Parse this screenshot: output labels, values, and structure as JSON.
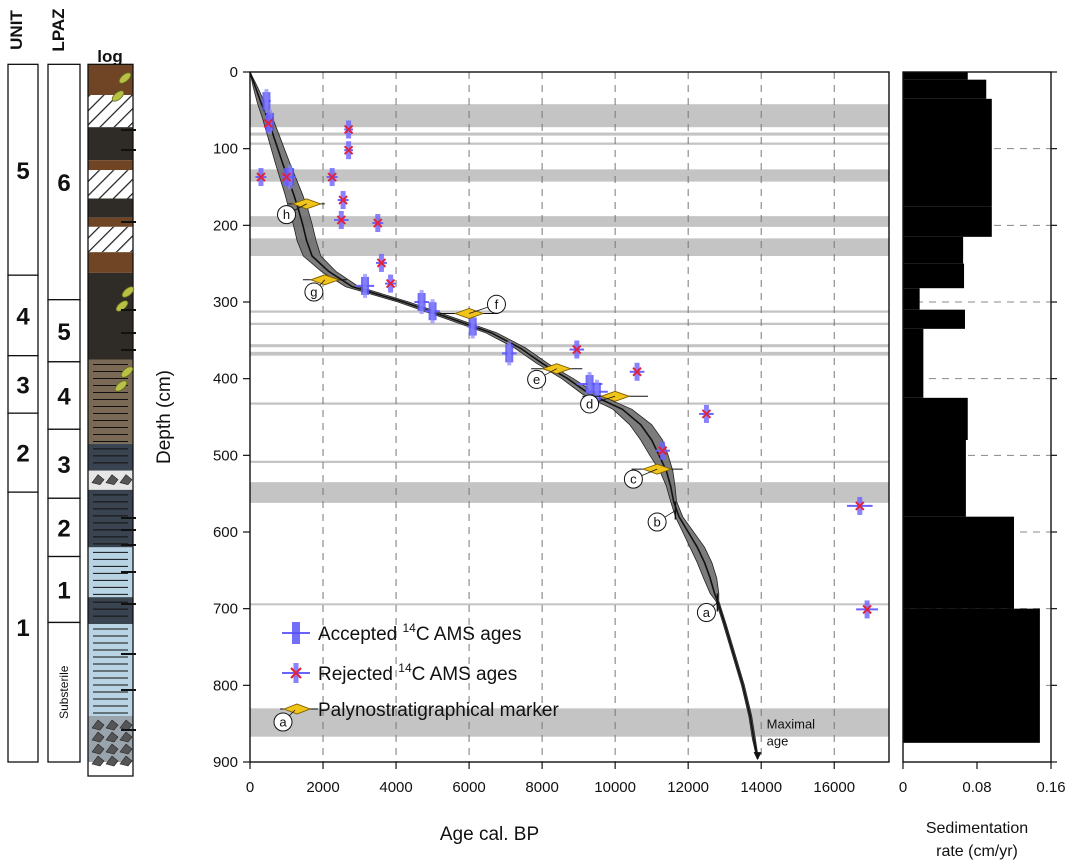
{
  "columns": {
    "unit_header": "UNIT",
    "lpaz_header": "LPAZ",
    "log_header": "log",
    "units": [
      {
        "label": "5",
        "top": -10,
        "bottom": 265
      },
      {
        "label": "4",
        "top": 265,
        "bottom": 370
      },
      {
        "label": "3",
        "top": 370,
        "bottom": 445
      },
      {
        "label": "2",
        "top": 445,
        "bottom": 548
      },
      {
        "label": "1",
        "top": 548,
        "bottom": 900
      }
    ],
    "lpaz": [
      {
        "label": "6",
        "top": -10,
        "bottom": 297
      },
      {
        "label": "5",
        "top": 297,
        "bottom": 378
      },
      {
        "label": "4",
        "top": 378,
        "bottom": 466
      },
      {
        "label": "3",
        "top": 466,
        "bottom": 556
      },
      {
        "label": "2",
        "top": 556,
        "bottom": 632
      },
      {
        "label": "1",
        "top": 632,
        "bottom": 718
      },
      {
        "label": "Substerile",
        "top": 718,
        "bottom": 900
      }
    ],
    "log_segments": [
      {
        "top": -10,
        "bottom": 30,
        "color": "#6f4526",
        "pattern": "plain"
      },
      {
        "top": 30,
        "bottom": 72,
        "color": "#ffffff",
        "pattern": "hatch"
      },
      {
        "top": 72,
        "bottom": 115,
        "color": "#2f2c27",
        "pattern": "plain"
      },
      {
        "top": 115,
        "bottom": 128,
        "color": "#6f4526",
        "pattern": "plain"
      },
      {
        "top": 128,
        "bottom": 165,
        "color": "#ffffff",
        "pattern": "hatch"
      },
      {
        "top": 165,
        "bottom": 190,
        "color": "#2f2c27",
        "pattern": "plain"
      },
      {
        "top": 190,
        "bottom": 202,
        "color": "#6f4526",
        "pattern": "plain"
      },
      {
        "top": 202,
        "bottom": 235,
        "color": "#ffffff",
        "pattern": "hatch"
      },
      {
        "top": 235,
        "bottom": 262,
        "color": "#6f4526",
        "pattern": "plain"
      },
      {
        "top": 262,
        "bottom": 375,
        "color": "#2f2c27",
        "pattern": "plain"
      },
      {
        "top": 375,
        "bottom": 485,
        "color": "#7a6a55",
        "pattern": "lines"
      },
      {
        "top": 485,
        "bottom": 520,
        "color": "#3a4450",
        "pattern": "lines"
      },
      {
        "top": 520,
        "bottom": 545,
        "color": "#e6e6e6",
        "pattern": "clast"
      },
      {
        "top": 545,
        "bottom": 620,
        "color": "#3a4450",
        "pattern": "lines"
      },
      {
        "top": 620,
        "bottom": 685,
        "color": "#b8d3e3",
        "pattern": "lines"
      },
      {
        "top": 685,
        "bottom": 720,
        "color": "#3a4450",
        "pattern": "lines"
      },
      {
        "top": 720,
        "bottom": 840,
        "color": "#b8d3e3",
        "pattern": "lines"
      },
      {
        "top": 840,
        "bottom": 900,
        "color": "#9aa4ad",
        "pattern": "clast"
      }
    ]
  },
  "chart_data": [
    {
      "type": "line",
      "title": "",
      "xlabel": "Age cal. BP",
      "ylabel": "Depth (cm)",
      "xlim": [
        0,
        17500
      ],
      "ylim": [
        900,
        0
      ],
      "xticks": [
        0,
        2000,
        4000,
        6000,
        8000,
        10000,
        12000,
        14000,
        16000
      ],
      "yticks": [
        0,
        100,
        200,
        300,
        400,
        500,
        600,
        700,
        800,
        900
      ],
      "grid": {
        "vertical_dashed": true
      },
      "legend": {
        "placement": "bottom-left",
        "entries": [
          "Accepted ",
          "Rejected ",
          "Palynostratigraphical marker"
        ],
        "superscript": "14",
        "suffix": "C AMS ages",
        "marker_letter": "a"
      },
      "hiatus_bands": [
        {
          "top": 42,
          "bottom": 72,
          "x_end": 17500
        },
        {
          "top": 79,
          "bottom": 83,
          "x_end": 17500
        },
        {
          "top": 92,
          "bottom": 95,
          "x_end": 17500
        },
        {
          "top": 127,
          "bottom": 143,
          "x_end": 17500
        },
        {
          "top": 188,
          "bottom": 202,
          "x_end": 17500
        },
        {
          "top": 217,
          "bottom": 240,
          "x_end": 17500
        },
        {
          "top": 311,
          "bottom": 314,
          "x_end": 17500
        },
        {
          "top": 327,
          "bottom": 330,
          "x_end": 17500
        },
        {
          "top": 355,
          "bottom": 359,
          "x_end": 17500
        },
        {
          "top": 365,
          "bottom": 370,
          "x_end": 17500
        },
        {
          "top": 431,
          "bottom": 434,
          "x_end": 17500
        },
        {
          "top": 507,
          "bottom": 510,
          "x_end": 17500
        },
        {
          "top": 535,
          "bottom": 562,
          "x_end": 17500
        },
        {
          "top": 693,
          "bottom": 695,
          "x_end": 17500
        },
        {
          "top": 830,
          "bottom": 855,
          "x_end": 17500
        },
        {
          "top": 855,
          "bottom": 867,
          "x_end": 17500
        }
      ],
      "age_model": {
        "depth": [
          0,
          20,
          40,
          60,
          80,
          100,
          120,
          140,
          160,
          180,
          200,
          220,
          240,
          260,
          280,
          300,
          320,
          340,
          360,
          380,
          400,
          420,
          440,
          460,
          480,
          500,
          520,
          540,
          560,
          580,
          600,
          620,
          640,
          660,
          680,
          690,
          720,
          760,
          800,
          840,
          870,
          895
        ],
        "age": [
          0,
          150,
          300,
          480,
          620,
          760,
          900,
          1050,
          1200,
          1330,
          1450,
          1550,
          1700,
          2150,
          2800,
          4200,
          5400,
          6600,
          7400,
          8000,
          8700,
          9300,
          10200,
          10700,
          11000,
          11200,
          11400,
          11520,
          11600,
          11750,
          12000,
          12250,
          12450,
          12600,
          12720,
          12800,
          13000,
          13250,
          13500,
          13700,
          13800,
          13900
        ],
        "band_halfwidth": [
          0,
          60,
          100,
          140,
          160,
          180,
          200,
          220,
          240,
          260,
          260,
          260,
          240,
          200,
          180,
          150,
          150,
          150,
          150,
          150,
          160,
          200,
          260,
          300,
          300,
          250,
          180,
          120,
          80,
          100,
          150,
          200,
          200,
          180,
          120,
          40,
          40,
          40,
          40,
          40,
          40,
          20
        ]
      },
      "accepted_ages": [
        {
          "age": 450,
          "depth": 38,
          "err": 120
        },
        {
          "age": 550,
          "depth": 65,
          "err": 100
        },
        {
          "age": 1100,
          "depth": 137,
          "err": 150
        },
        {
          "age": 3150,
          "depth": 279,
          "err": 250
        },
        {
          "age": 4700,
          "depth": 300,
          "err": 200
        },
        {
          "age": 5000,
          "depth": 312,
          "err": 200
        },
        {
          "age": 6100,
          "depth": 332,
          "err": 150
        },
        {
          "age": 7100,
          "depth": 367,
          "err": 200
        },
        {
          "age": 9300,
          "depth": 407,
          "err": 350
        },
        {
          "age": 9500,
          "depth": 417,
          "err": 300
        }
      ],
      "rejected_ages": [
        {
          "age": 300,
          "depth": 137,
          "err": 150
        },
        {
          "age": 500,
          "depth": 67,
          "err": 100
        },
        {
          "age": 1000,
          "depth": 137,
          "err": 150
        },
        {
          "age": 2250,
          "depth": 137,
          "err": 150
        },
        {
          "age": 2700,
          "depth": 75,
          "err": 120
        },
        {
          "age": 2700,
          "depth": 102,
          "err": 120
        },
        {
          "age": 2550,
          "depth": 167,
          "err": 150
        },
        {
          "age": 2500,
          "depth": 193,
          "err": 200
        },
        {
          "age": 3500,
          "depth": 197,
          "err": 150
        },
        {
          "age": 3600,
          "depth": 249,
          "err": 150
        },
        {
          "age": 3850,
          "depth": 276,
          "err": 150
        },
        {
          "age": 8950,
          "depth": 362,
          "err": 200
        },
        {
          "age": 10600,
          "depth": 391,
          "err": 200
        },
        {
          "age": 11300,
          "depth": 494,
          "err": 200
        },
        {
          "age": 12500,
          "depth": 446,
          "err": 200
        },
        {
          "age": 16700,
          "depth": 566,
          "err": 350
        },
        {
          "age": 16900,
          "depth": 701,
          "err": 300
        }
      ],
      "palynomarkers": [
        {
          "letter": "h",
          "age": 1550,
          "depth": 172,
          "err": 500,
          "lx": 1000,
          "ly": 186
        },
        {
          "letter": "g",
          "age": 2050,
          "depth": 271,
          "err": 600,
          "lx": 1750,
          "ly": 287
        },
        {
          "letter": "f",
          "age": 6000,
          "depth": 315,
          "err": 800,
          "lx": 6750,
          "ly": 303
        },
        {
          "letter": "e",
          "age": 8400,
          "depth": 387,
          "err": 700,
          "lx": 7850,
          "ly": 401
        },
        {
          "letter": "d",
          "age": 10000,
          "depth": 423,
          "err": 900,
          "lx": 9300,
          "ly": 433
        },
        {
          "letter": "c",
          "age": 11150,
          "depth": 518,
          "err": 700,
          "lx": 10500,
          "ly": 531
        },
        {
          "letter": "b",
          "age": 11650,
          "depth": 572,
          "err": 0,
          "lx": 11150,
          "ly": 587
        },
        {
          "letter": "a",
          "age": 12800,
          "depth": 692,
          "err": 0,
          "lx": 12500,
          "ly": 705
        }
      ],
      "annotations": [
        {
          "text": "Maximal",
          "age": 14150,
          "depth": 850
        },
        {
          "text": "age",
          "age": 14150,
          "depth": 872
        }
      ]
    },
    {
      "type": "bar",
      "orientation": "horizontal-step",
      "title": "",
      "xlabel": "Sedimentation rate (cm/yr)",
      "xlabel_lines": [
        "Sedimentation",
        "rate (cm/yr)"
      ],
      "ylabel": "",
      "xlim": [
        0,
        0.16
      ],
      "ylim": [
        900,
        0
      ],
      "xticks": [
        0,
        0.08,
        0.16
      ],
      "xtick_labels": [
        "0",
        "0.08",
        "0.16"
      ],
      "grid": {
        "horizontal_dashed": true
      },
      "segments": [
        {
          "top": 0,
          "bottom": 10,
          "rate": 0.07
        },
        {
          "top": 10,
          "bottom": 35,
          "rate": 0.09
        },
        {
          "top": 35,
          "bottom": 175,
          "rate": 0.096
        },
        {
          "top": 175,
          "bottom": 215,
          "rate": 0.096
        },
        {
          "top": 215,
          "bottom": 250,
          "rate": 0.065
        },
        {
          "top": 250,
          "bottom": 282,
          "rate": 0.066
        },
        {
          "top": 282,
          "bottom": 310,
          "rate": 0.018
        },
        {
          "top": 310,
          "bottom": 335,
          "rate": 0.067
        },
        {
          "top": 335,
          "bottom": 425,
          "rate": 0.022
        },
        {
          "top": 425,
          "bottom": 465,
          "rate": 0.07
        },
        {
          "top": 465,
          "bottom": 480,
          "rate": 0.07
        },
        {
          "top": 480,
          "bottom": 580,
          "rate": 0.068
        },
        {
          "top": 580,
          "bottom": 700,
          "rate": 0.12
        },
        {
          "top": 700,
          "bottom": 875,
          "rate": 0.148
        }
      ]
    }
  ]
}
